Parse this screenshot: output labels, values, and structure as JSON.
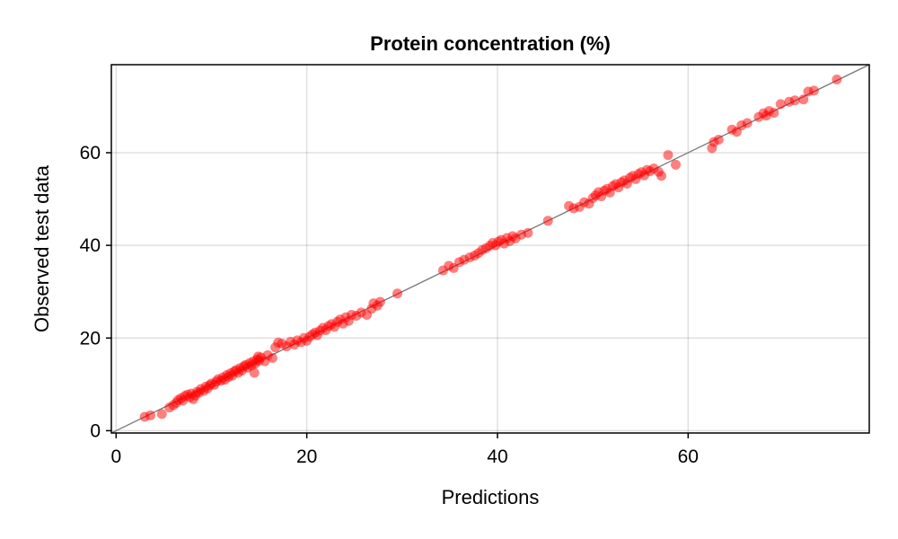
{
  "chart_data": {
    "type": "scatter",
    "title": "Protein concentration (%)",
    "xlabel": "Predictions",
    "ylabel": "Observed test data",
    "xlim": [
      -0.5,
      79
    ],
    "ylim": [
      -0.5,
      79
    ],
    "xticks": [
      0,
      20,
      40,
      60
    ],
    "yticks": [
      0,
      20,
      40,
      60
    ],
    "xtick_labels": [
      "0",
      "20",
      "40",
      "60"
    ],
    "ytick_labels": [
      "0",
      "20",
      "40",
      "60"
    ],
    "grid": true,
    "reference_line": {
      "type": "identity",
      "color": "#777777"
    },
    "marker_color": "#ff0000",
    "series": [
      {
        "points": [
          [
            3.0,
            3.0
          ],
          [
            3.6,
            3.3
          ],
          [
            4.8,
            3.6
          ],
          [
            5.6,
            5.0
          ],
          [
            6.0,
            5.5
          ],
          [
            6.3,
            6.0
          ],
          [
            6.5,
            6.6
          ],
          [
            6.8,
            7.0
          ],
          [
            7.0,
            6.5
          ],
          [
            7.2,
            7.5
          ],
          [
            7.5,
            7.8
          ],
          [
            7.7,
            7.2
          ],
          [
            7.9,
            8.0
          ],
          [
            8.1,
            6.8
          ],
          [
            8.3,
            7.6
          ],
          [
            8.5,
            8.4
          ],
          [
            8.7,
            8.2
          ],
          [
            8.9,
            9.0
          ],
          [
            9.2,
            8.6
          ],
          [
            9.4,
            9.5
          ],
          [
            9.6,
            9.1
          ],
          [
            9.8,
            9.8
          ],
          [
            10.0,
            10.2
          ],
          [
            10.3,
            9.9
          ],
          [
            10.5,
            10.6
          ],
          [
            10.7,
            11.1
          ],
          [
            11.0,
            10.8
          ],
          [
            11.2,
            11.5
          ],
          [
            11.4,
            11.0
          ],
          [
            11.6,
            12.0
          ],
          [
            11.8,
            11.6
          ],
          [
            12.0,
            12.4
          ],
          [
            12.2,
            11.9
          ],
          [
            12.4,
            12.8
          ],
          [
            12.6,
            13.1
          ],
          [
            12.8,
            12.5
          ],
          [
            13.0,
            13.5
          ],
          [
            13.2,
            13.0
          ],
          [
            13.4,
            13.9
          ],
          [
            13.6,
            14.2
          ],
          [
            13.8,
            13.6
          ],
          [
            14.0,
            14.6
          ],
          [
            14.2,
            14.1
          ],
          [
            14.4,
            15.0
          ],
          [
            14.5,
            12.5
          ],
          [
            14.6,
            14.5
          ],
          [
            14.8,
            15.4
          ],
          [
            14.9,
            16.0
          ],
          [
            15.0,
            15.1
          ],
          [
            15.2,
            15.8
          ],
          [
            15.6,
            15.0
          ],
          [
            15.9,
            16.3
          ],
          [
            16.4,
            15.7
          ],
          [
            16.7,
            18.0
          ],
          [
            17.0,
            19.0
          ],
          [
            17.4,
            18.8
          ],
          [
            17.9,
            18.2
          ],
          [
            18.3,
            19.2
          ],
          [
            18.7,
            18.6
          ],
          [
            19.0,
            19.5
          ],
          [
            19.4,
            19.1
          ],
          [
            19.7,
            20.0
          ],
          [
            20.0,
            19.4
          ],
          [
            20.3,
            20.3
          ],
          [
            20.6,
            20.8
          ],
          [
            20.9,
            21.2
          ],
          [
            21.1,
            20.6
          ],
          [
            21.4,
            21.6
          ],
          [
            21.7,
            22.2
          ],
          [
            22.0,
            21.7
          ],
          [
            22.3,
            22.6
          ],
          [
            22.6,
            23.0
          ],
          [
            22.9,
            22.4
          ],
          [
            23.2,
            23.5
          ],
          [
            23.5,
            24.0
          ],
          [
            23.8,
            23.1
          ],
          [
            24.1,
            24.5
          ],
          [
            24.4,
            23.7
          ],
          [
            24.7,
            25.0
          ],
          [
            25.2,
            24.8
          ],
          [
            25.7,
            25.5
          ],
          [
            26.3,
            25.0
          ],
          [
            26.8,
            26.3
          ],
          [
            27.0,
            27.5
          ],
          [
            27.4,
            27.0
          ],
          [
            27.7,
            27.8
          ],
          [
            29.5,
            29.6
          ],
          [
            34.3,
            34.6
          ],
          [
            34.9,
            35.6
          ],
          [
            35.4,
            35.1
          ],
          [
            36.0,
            36.4
          ],
          [
            36.5,
            36.9
          ],
          [
            37.1,
            37.4
          ],
          [
            37.6,
            37.8
          ],
          [
            38.0,
            38.3
          ],
          [
            38.4,
            39.0
          ],
          [
            38.8,
            39.4
          ],
          [
            39.2,
            39.9
          ],
          [
            39.5,
            40.5
          ],
          [
            39.8,
            40.0
          ],
          [
            40.1,
            40.8
          ],
          [
            40.4,
            41.2
          ],
          [
            40.7,
            40.4
          ],
          [
            41.0,
            41.6
          ],
          [
            41.3,
            40.9
          ],
          [
            41.6,
            42.0
          ],
          [
            41.9,
            41.5
          ],
          [
            42.5,
            42.3
          ],
          [
            43.2,
            42.7
          ],
          [
            45.3,
            45.3
          ],
          [
            47.5,
            48.5
          ],
          [
            48.0,
            48.0
          ],
          [
            48.6,
            48.3
          ],
          [
            49.1,
            49.3
          ],
          [
            49.6,
            49.0
          ],
          [
            50.0,
            50.2
          ],
          [
            50.3,
            50.8
          ],
          [
            50.6,
            51.5
          ],
          [
            50.9,
            50.6
          ],
          [
            51.2,
            51.8
          ],
          [
            51.5,
            52.2
          ],
          [
            51.8,
            51.4
          ],
          [
            52.1,
            52.8
          ],
          [
            52.4,
            53.2
          ],
          [
            52.7,
            52.5
          ],
          [
            53.0,
            53.6
          ],
          [
            53.3,
            54.0
          ],
          [
            53.6,
            53.3
          ],
          [
            53.9,
            54.6
          ],
          [
            54.2,
            55.0
          ],
          [
            54.5,
            54.3
          ],
          [
            54.8,
            55.4
          ],
          [
            55.1,
            55.8
          ],
          [
            55.4,
            55.1
          ],
          [
            55.7,
            56.3
          ],
          [
            56.0,
            56.0
          ],
          [
            56.4,
            56.6
          ],
          [
            56.9,
            55.9
          ],
          [
            57.2,
            55.0
          ],
          [
            57.9,
            59.5
          ],
          [
            58.7,
            57.4
          ],
          [
            62.5,
            61.0
          ],
          [
            62.7,
            62.3
          ],
          [
            63.2,
            62.8
          ],
          [
            64.6,
            65.0
          ],
          [
            65.1,
            64.5
          ],
          [
            65.6,
            65.9
          ],
          [
            66.2,
            66.4
          ],
          [
            67.4,
            67.7
          ],
          [
            67.9,
            68.5
          ],
          [
            68.2,
            68.0
          ],
          [
            68.5,
            69.0
          ],
          [
            69.0,
            68.6
          ],
          [
            69.7,
            70.5
          ],
          [
            70.6,
            71.0
          ],
          [
            71.2,
            71.3
          ],
          [
            72.1,
            71.5
          ],
          [
            72.6,
            73.2
          ],
          [
            73.2,
            73.4
          ],
          [
            75.6,
            75.8
          ]
        ]
      }
    ]
  }
}
